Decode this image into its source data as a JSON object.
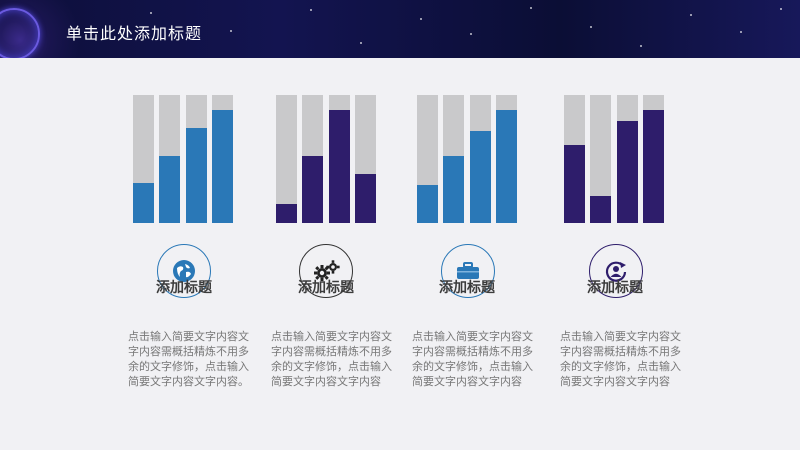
{
  "header": {
    "title": "单击此处添加标题"
  },
  "colors": {
    "blue": "#2a78b7",
    "purple": "#2e1d6b",
    "track": "#c9c9cb"
  },
  "cards": [
    {
      "bar_color": "blue",
      "bars": [
        0.31,
        0.52,
        0.74,
        0.88
      ],
      "icon": "globe-icon",
      "icon_color": "blue",
      "title": "添加标题",
      "desc": "点击输入简要文字内容文字内容需概括精炼不用多余的文字修饰，点击输入简要文字内容文字内容。"
    },
    {
      "bar_color": "purple",
      "bars": [
        0.15,
        0.52,
        0.88,
        0.38
      ],
      "icon": "gears-icon",
      "icon_color": "dark",
      "title": "添加标题",
      "desc": "点击输入简要文字内容文字内容需概括精炼不用多余的文字修饰，点击输入简要文字内容文字内容"
    },
    {
      "bar_color": "blue",
      "bars": [
        0.3,
        0.52,
        0.72,
        0.88
      ],
      "icon": "briefcase-icon",
      "icon_color": "blue",
      "title": "添加标题",
      "desc": "点击输入简要文字内容文字内容需概括精炼不用多余的文字修饰，点击输入简要文字内容文字内容"
    },
    {
      "bar_color": "purple",
      "bars": [
        0.61,
        0.21,
        0.8,
        0.88
      ],
      "icon": "refresh-user-icon",
      "icon_color": "purple",
      "title": "添加标题",
      "desc": "点击输入简要文字内容文字内容需概括精炼不用多余的文字修饰，点击输入简要文字内容文字内容"
    }
  ]
}
